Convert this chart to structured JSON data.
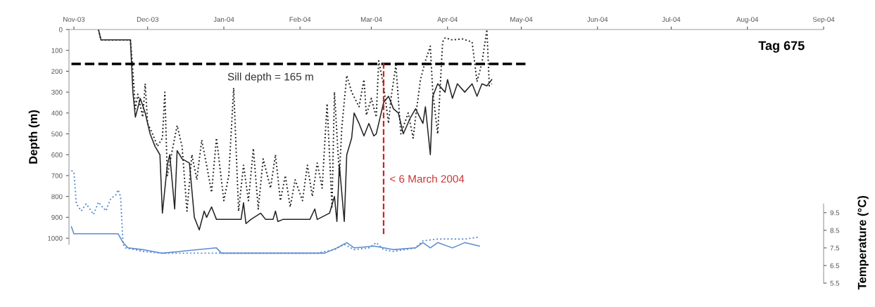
{
  "chart_data": {
    "type": "line",
    "ylabel": "Depth (m)",
    "y2label": "Temperature (°C)",
    "xlim": [
      "2003-10-30",
      "2004-09-01"
    ],
    "xticks": [
      {
        "value": "2003-11-01",
        "label": "Nov-03"
      },
      {
        "value": "2003-12-01",
        "label": "Dec-03"
      },
      {
        "value": "2004-01-01",
        "label": "Jan-04"
      },
      {
        "value": "2004-02-01",
        "label": "Feb-04"
      },
      {
        "value": "2004-03-01",
        "label": "Mar-04"
      },
      {
        "value": "2004-04-01",
        "label": "Apr-04"
      },
      {
        "value": "2004-05-01",
        "label": "May-04"
      },
      {
        "value": "2004-06-01",
        "label": "Jun-04"
      },
      {
        "value": "2004-07-01",
        "label": "Jul-04"
      },
      {
        "value": "2004-08-01",
        "label": "Aug-04"
      },
      {
        "value": "2004-09-01",
        "label": "Sep-04"
      }
    ],
    "ylim": [
      1030,
      0
    ],
    "yticks": [
      0,
      100,
      200,
      300,
      400,
      500,
      600,
      700,
      800,
      900,
      1000
    ],
    "y2lim": [
      5.5,
      19.9
    ],
    "y2ticks": [
      5.5,
      6.5,
      7.5,
      8.5,
      9.5
    ],
    "grid": false,
    "marker": "none",
    "series": [
      {
        "color": "#222222",
        "line_style": "solid",
        "x": [
          "2003-11-11",
          "2003-11-12",
          "2003-11-24",
          "2003-11-25",
          "2003-11-26",
          "2003-11-28",
          "2003-11-30",
          "2003-12-02",
          "2003-12-04",
          "2003-12-06",
          "2003-12-07",
          "2003-12-09",
          "2003-12-10",
          "2003-12-12",
          "2003-12-13",
          "2003-12-15",
          "2003-12-18",
          "2003-12-20",
          "2003-12-22",
          "2003-12-24",
          "2003-12-25",
          "2003-12-27",
          "2003-12-29",
          "2004-01-08",
          "2004-01-09",
          "2004-01-10",
          "2004-01-12",
          "2004-01-16",
          "2004-01-18",
          "2004-01-21",
          "2004-01-22",
          "2004-01-23",
          "2004-01-25",
          "2004-02-05",
          "2004-02-07",
          "2004-02-08",
          "2004-02-13",
          "2004-02-15",
          "2004-02-16",
          "2004-02-17",
          "2004-02-19",
          "2004-02-20",
          "2004-02-22",
          "2004-02-23",
          "2004-02-25",
          "2004-02-27",
          "2004-02-29",
          "2004-03-02",
          "2004-03-03",
          "2004-03-05",
          "2004-03-06",
          "2004-03-08",
          "2004-03-10",
          "2004-03-12",
          "2004-03-14",
          "2004-03-17",
          "2004-03-19",
          "2004-03-22",
          "2004-03-23",
          "2004-03-25",
          "2004-03-26",
          "2004-03-28",
          "2004-03-31",
          "2004-04-01",
          "2004-04-03",
          "2004-04-05",
          "2004-04-08",
          "2004-04-11",
          "2004-04-13",
          "2004-04-15",
          "2004-04-17",
          "2004-04-19"
        ],
        "values": [
          0,
          50,
          50,
          300,
          420,
          330,
          400,
          500,
          560,
          600,
          880,
          650,
          600,
          860,
          580,
          620,
          640,
          900,
          960,
          870,
          900,
          850,
          910,
          910,
          830,
          930,
          910,
          880,
          910,
          910,
          870,
          920,
          910,
          910,
          860,
          910,
          880,
          800,
          920,
          650,
          920,
          600,
          520,
          400,
          450,
          510,
          450,
          510,
          500,
          400,
          350,
          320,
          380,
          400,
          500,
          420,
          380,
          450,
          370,
          600,
          320,
          260,
          300,
          240,
          330,
          260,
          300,
          260,
          320,
          260,
          270,
          240
        ]
      },
      {
        "color": "#222222",
        "line_style": "dotted",
        "x": [
          "2003-11-11",
          "2003-11-12",
          "2003-11-24",
          "2003-11-25",
          "2003-11-26",
          "2003-11-27",
          "2003-11-29",
          "2003-11-30",
          "2003-12-01",
          "2003-12-03",
          "2003-12-05",
          "2003-12-07",
          "2003-12-08",
          "2003-12-09",
          "2003-12-11",
          "2003-12-13",
          "2003-12-15",
          "2003-12-17",
          "2003-12-19",
          "2003-12-21",
          "2003-12-23",
          "2003-12-25",
          "2003-12-27",
          "2003-12-29",
          "2004-01-01",
          "2004-01-03",
          "2004-01-05",
          "2004-01-07",
          "2004-01-09",
          "2004-01-11",
          "2004-01-13",
          "2004-01-15",
          "2004-01-17",
          "2004-01-20",
          "2004-01-22",
          "2004-01-24",
          "2004-01-26",
          "2004-01-28",
          "2004-01-30",
          "2004-02-02",
          "2004-02-04",
          "2004-02-06",
          "2004-02-08",
          "2004-02-10",
          "2004-02-12",
          "2004-02-14",
          "2004-02-15",
          "2004-02-17",
          "2004-02-18",
          "2004-02-20",
          "2004-02-22",
          "2004-02-25",
          "2004-02-27",
          "2004-02-28",
          "2004-03-01",
          "2004-03-03",
          "2004-03-04",
          "2004-03-06",
          "2004-03-08",
          "2004-03-09",
          "2004-03-11",
          "2004-03-13",
          "2004-03-16",
          "2004-03-18",
          "2004-03-19",
          "2004-03-21",
          "2004-03-23",
          "2004-03-25",
          "2004-03-26",
          "2004-03-28",
          "2004-03-30",
          "2004-03-31",
          "2004-04-03",
          "2004-04-07",
          "2004-04-11",
          "2004-04-13",
          "2004-04-15",
          "2004-04-17",
          "2004-04-18",
          "2004-04-19"
        ],
        "values": [
          0,
          50,
          50,
          200,
          380,
          310,
          420,
          260,
          450,
          500,
          560,
          520,
          300,
          700,
          580,
          460,
          560,
          870,
          600,
          720,
          530,
          650,
          780,
          520,
          820,
          700,
          280,
          870,
          650,
          820,
          570,
          860,
          620,
          760,
          600,
          820,
          700,
          850,
          720,
          820,
          650,
          800,
          640,
          760,
          355,
          850,
          300,
          700,
          470,
          220,
          300,
          370,
          240,
          410,
          330,
          420,
          150,
          270,
          450,
          330,
          170,
          500,
          400,
          520,
          420,
          240,
          150,
          80,
          300,
          500,
          60,
          40,
          50,
          45,
          60,
          250,
          160,
          0,
          270,
          260
        ]
      },
      {
        "color": "#000000",
        "line_style": "dashed",
        "x": [
          "2003-10-31",
          "2004-05-03"
        ],
        "values": [
          165,
          165
        ]
      },
      {
        "color": "#cc2222",
        "line_style": "dashed",
        "x": [
          "2004-03-06",
          "2004-03-06"
        ],
        "values": [
          160,
          980
        ]
      },
      {
        "color": "#5b8bd0",
        "line_style": "solid",
        "axis": "y2",
        "x": [
          "2003-10-31",
          "2003-11-01",
          "2003-11-09",
          "2003-11-14",
          "2003-11-19",
          "2003-11-21",
          "2003-11-23",
          "2003-11-29",
          "2003-12-07",
          "2003-12-29",
          "2003-12-31",
          "2004-02-11",
          "2004-02-16",
          "2004-02-20",
          "2004-02-23",
          "2004-03-02",
          "2004-03-06",
          "2004-03-10",
          "2004-03-19",
          "2004-03-22",
          "2004-03-25",
          "2004-03-28",
          "2004-04-03",
          "2004-04-08",
          "2004-04-14"
        ],
        "values": [
          8.7,
          8.3,
          8.3,
          8.3,
          8.3,
          7.8,
          7.5,
          7.4,
          7.2,
          7.5,
          7.2,
          7.2,
          7.5,
          7.8,
          7.5,
          7.6,
          7.5,
          7.4,
          7.5,
          7.8,
          7.5,
          7.8,
          7.5,
          7.8,
          7.6
        ]
      },
      {
        "color": "#5b8bd0",
        "line_style": "dotted",
        "axis": "y2",
        "x": [
          "2003-10-31",
          "2003-11-01",
          "2003-11-02",
          "2003-11-04",
          "2003-11-06",
          "2003-11-09",
          "2003-11-11",
          "2003-11-14",
          "2003-11-16",
          "2003-11-18",
          "2003-11-19",
          "2003-11-20",
          "2003-11-21",
          "2003-11-22",
          "2003-11-26",
          "2003-11-29",
          "2003-12-07",
          "2003-12-27",
          "2004-02-08",
          "2004-02-15",
          "2004-02-19",
          "2004-02-23",
          "2004-02-29",
          "2004-03-03",
          "2004-03-06",
          "2004-03-10",
          "2004-03-19",
          "2004-03-22",
          "2004-03-28",
          "2004-04-08",
          "2004-04-13",
          "2004-04-14"
        ],
        "values": [
          11.9,
          11.8,
          10.0,
          9.6,
          10.0,
          9.4,
          10.1,
          9.6,
          10.3,
          10.5,
          10.8,
          10.4,
          7.7,
          7.5,
          7.4,
          7.3,
          7.2,
          7.2,
          7.2,
          7.4,
          7.7,
          7.4,
          7.5,
          7.8,
          7.4,
          7.3,
          7.5,
          7.9,
          8.0,
          8.0,
          8.1,
          8.1
        ]
      }
    ],
    "annotations": [
      {
        "text": "Sill depth = 165 m",
        "x": "2004-01-20",
        "y": 165
      },
      {
        "text": "< 6 March 2004",
        "x": "2004-03-06",
        "y": 720
      },
      "Tag 675"
    ]
  }
}
